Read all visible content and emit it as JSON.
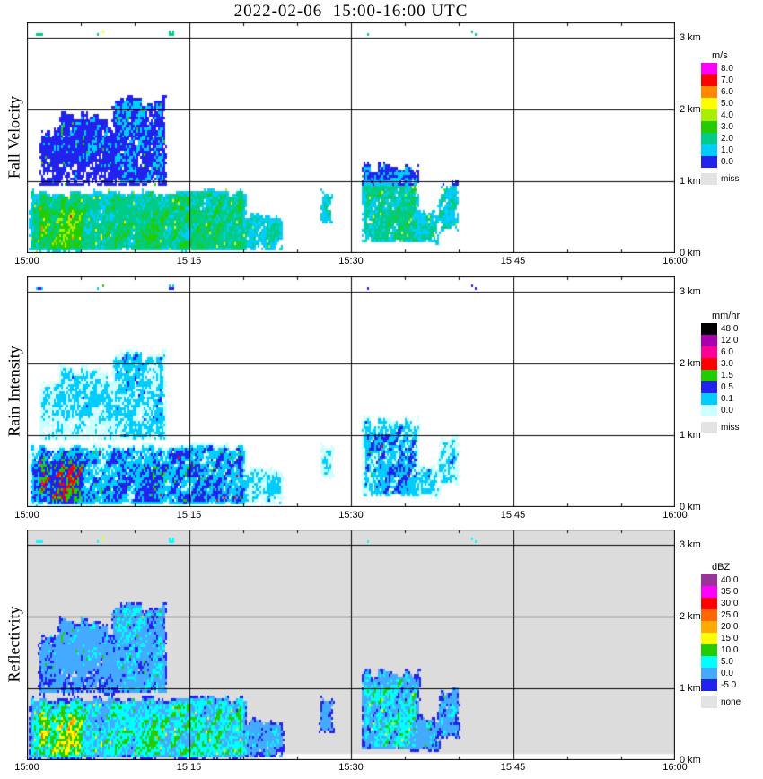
{
  "title": "2022-02-06  15:00-16:00 UTC",
  "x_ticks": [
    "15:00",
    "15:15",
    "15:30",
    "15:45",
    "16:00"
  ],
  "y_ticks": [
    "0 km",
    "1 km",
    "2 km",
    "3 km"
  ],
  "panels": [
    {
      "key": "fall-velocity",
      "ylabel": "Fall Velocity",
      "units": "m/s",
      "background": "#ffffff",
      "colorbar": [
        {
          "label": "8.0",
          "color": "#ff00ff"
        },
        {
          "label": "7.0",
          "color": "#ff0000"
        },
        {
          "label": "6.0",
          "color": "#ff8800"
        },
        {
          "label": "5.0",
          "color": "#ffff00"
        },
        {
          "label": "4.0",
          "color": "#aaee00"
        },
        {
          "label": "3.0",
          "color": "#22cc00"
        },
        {
          "label": "2.0",
          "color": "#00cc88"
        },
        {
          "label": "1.0",
          "color": "#00ccff"
        },
        {
          "label": "0.0",
          "color": "#2222ee"
        }
      ],
      "missing": {
        "label": "miss",
        "color": "#e3e3e3"
      }
    },
    {
      "key": "rain-intensity",
      "ylabel": "Rain Intensity",
      "units": "mm/hr",
      "background": "#ffffff",
      "colorbar": [
        {
          "label": "48.0",
          "color": "#000000"
        },
        {
          "label": "12.0",
          "color": "#aa00aa"
        },
        {
          "label": "6.0",
          "color": "#ff0099"
        },
        {
          "label": "3.0",
          "color": "#ff0000"
        },
        {
          "label": "1.5",
          "color": "#22cc00"
        },
        {
          "label": "0.5",
          "color": "#2222ee"
        },
        {
          "label": "0.1",
          "color": "#00ccff"
        },
        {
          "label": "0.0",
          "color": "#ccffff"
        }
      ],
      "missing": {
        "label": "miss",
        "color": "#e3e3e3"
      }
    },
    {
      "key": "reflectivity",
      "ylabel": "Reflectivity",
      "units": "dBZ",
      "background": "#dcdcdc",
      "colorbar": [
        {
          "label": "40.0",
          "color": "#993399"
        },
        {
          "label": "35.0",
          "color": "#ff00ff"
        },
        {
          "label": "30.0",
          "color": "#ff0000"
        },
        {
          "label": "25.0",
          "color": "#ff6600"
        },
        {
          "label": "20.0",
          "color": "#ffaa00"
        },
        {
          "label": "15.0",
          "color": "#ffff00"
        },
        {
          "label": "10.0",
          "color": "#22cc00"
        },
        {
          "label": "5.0",
          "color": "#00ffff"
        },
        {
          "label": "0.0",
          "color": "#44aaff"
        },
        {
          "label": "-5.0",
          "color": "#2222ee"
        }
      ],
      "missing": {
        "label": "none",
        "color": "#e3e3e3"
      }
    }
  ],
  "chart_data": {
    "type": "heatmap",
    "title": "2022-02-06  15:00-16:00 UTC",
    "x_range_minutes": [
      0,
      60
    ],
    "y_range_km": [
      0,
      3.2125
    ],
    "x_tick_minutes": [
      0,
      15,
      30,
      45,
      60
    ],
    "grid": true,
    "seed": 7,
    "echo_regions": [
      {
        "id": 1,
        "t0": 0.0,
        "t1": 20.5,
        "h0": 0.0,
        "h1": 0.92,
        "i": 0.62
      },
      {
        "id": 2,
        "t0": 0.6,
        "t1": 5.8,
        "h0": 0.0,
        "h1": 0.78,
        "i": 0.88
      },
      {
        "id": 3,
        "t0": 12.0,
        "t1": 24.0,
        "h0": 0.0,
        "h1": 0.62,
        "i": 0.4
      },
      {
        "id": 4,
        "t0": 0.8,
        "t1": 8.5,
        "h0": 0.88,
        "h1": 1.95,
        "i": 0.34
      },
      {
        "id": 5,
        "t0": 2.6,
        "t1": 7.2,
        "h0": 1.2,
        "h1": 2.05,
        "i": 0.36
      },
      {
        "id": 6,
        "t0": 7.6,
        "t1": 13.2,
        "h0": 0.9,
        "h1": 2.28,
        "i": 0.46
      },
      {
        "id": 7,
        "t0": 26.8,
        "t1": 28.8,
        "h0": 0.35,
        "h1": 0.95,
        "i": 0.32
      },
      {
        "id": 8,
        "t0": 30.8,
        "t1": 36.6,
        "h0": 0.12,
        "h1": 1.34,
        "i": 0.56
      },
      {
        "id": 9,
        "t0": 34.0,
        "t1": 38.6,
        "h0": 0.1,
        "h1": 0.68,
        "i": 0.38
      },
      {
        "id": 10,
        "t0": 37.8,
        "t1": 40.3,
        "h0": 0.28,
        "h1": 1.06,
        "i": 0.46
      },
      {
        "id": 11,
        "t0": 0.6,
        "t1": 1.6,
        "h0": 3.02,
        "h1": 3.1,
        "i": 0.45,
        "kind": "dots"
      },
      {
        "id": 12,
        "t0": 6.5,
        "t1": 7.2,
        "h0": 3.02,
        "h1": 3.1,
        "i": 0.45,
        "kind": "dots"
      },
      {
        "id": 13,
        "t0": 12.9,
        "t1": 13.7,
        "h0": 3.02,
        "h1": 3.1,
        "i": 0.45,
        "kind": "dots"
      },
      {
        "id": 14,
        "t0": 30.9,
        "t1": 31.7,
        "h0": 3.02,
        "h1": 3.1,
        "i": 0.45,
        "kind": "dots"
      },
      {
        "id": 15,
        "t0": 41.2,
        "t1": 41.9,
        "h0": 3.02,
        "h1": 3.1,
        "i": 0.45,
        "kind": "dots"
      }
    ],
    "clear_strip": {
      "panel": "reflectivity",
      "t0": 21.5,
      "t1": 60,
      "h0": 0,
      "h1": 0.085
    },
    "value_maps": {
      "fall_velocity": {
        "threshold": 0.14,
        "melting_height_km": 0.92,
        "low_level_base": 0.9,
        "low_level_gain": 4.3,
        "aloft_base": 0.3,
        "aloft_gain": 2.4,
        "top_base": 2.1,
        "top_gain": 2.0,
        "edges": [
          0,
          1,
          2,
          3,
          4,
          5,
          6,
          7,
          8
        ]
      },
      "rain_intensity": {
        "threshold": 0.115,
        "gain": 8,
        "power": 3,
        "edges": [
          0,
          0.1,
          0.5,
          1.5,
          3,
          6,
          12,
          48
        ]
      },
      "reflectivity": {
        "threshold": 0.1,
        "base": -5,
        "gain": 32,
        "edges": [
          -5,
          0,
          5,
          10,
          15,
          20,
          25,
          30,
          35,
          40
        ]
      }
    }
  }
}
